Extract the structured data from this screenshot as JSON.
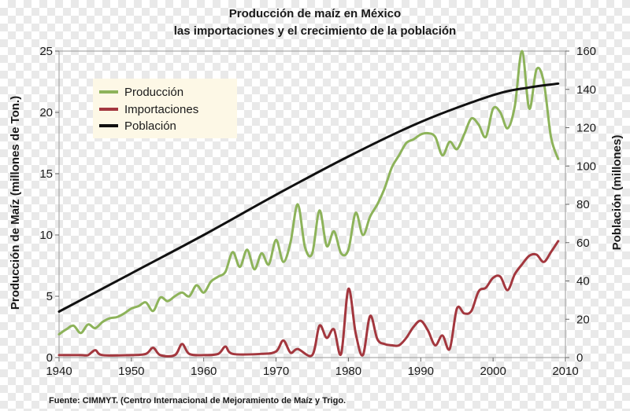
{
  "chart_data": {
    "type": "line",
    "title": "Producción de maíz en México",
    "subtitle": "las importaciones y el crecimiento de la población",
    "ylabel_left": "Producción de Maíz (millones de Ton.)",
    "ylabel_right": "Población (millones)",
    "source": "Fuente: CIMMYT. (Centro Internacional de Mejoramiento de Maíz y Trigo.",
    "xlim": [
      1940,
      2010
    ],
    "ylim_left": [
      0,
      25
    ],
    "ylim_right": [
      0,
      160
    ],
    "x_ticks": [
      "1940",
      "1950",
      "1960",
      "1970",
      "1980",
      "1990",
      "2000",
      "2010"
    ],
    "y_ticks_left": [
      "0",
      "5",
      "10",
      "15",
      "20",
      "25"
    ],
    "y_ticks_right": [
      "0",
      "20",
      "40",
      "60",
      "80",
      "100",
      "120",
      "140",
      "160"
    ],
    "legend": {
      "placement": "top-left",
      "entries": [
        "Producción",
        "Importaciones",
        "Población"
      ]
    },
    "series": [
      {
        "name": "Producción",
        "axis": "left",
        "color": "#8db35a",
        "points": [
          [
            1940,
            1.9
          ],
          [
            1941,
            2.3
          ],
          [
            1942,
            2.6
          ],
          [
            1943,
            2.0
          ],
          [
            1944,
            2.7
          ],
          [
            1945,
            2.4
          ],
          [
            1946,
            2.9
          ],
          [
            1947,
            3.2
          ],
          [
            1948,
            3.3
          ],
          [
            1949,
            3.6
          ],
          [
            1950,
            4.0
          ],
          [
            1951,
            4.2
          ],
          [
            1952,
            4.5
          ],
          [
            1953,
            3.8
          ],
          [
            1954,
            4.9
          ],
          [
            1955,
            4.6
          ],
          [
            1956,
            5.0
          ],
          [
            1957,
            5.3
          ],
          [
            1958,
            5.0
          ],
          [
            1959,
            5.9
          ],
          [
            1960,
            5.3
          ],
          [
            1961,
            6.2
          ],
          [
            1962,
            6.6
          ],
          [
            1963,
            7.0
          ],
          [
            1964,
            8.6
          ],
          [
            1965,
            7.4
          ],
          [
            1966,
            8.8
          ],
          [
            1967,
            7.2
          ],
          [
            1968,
            8.5
          ],
          [
            1969,
            7.6
          ],
          [
            1970,
            9.6
          ],
          [
            1971,
            7.8
          ],
          [
            1972,
            9.4
          ],
          [
            1973,
            12.5
          ],
          [
            1974,
            9.0
          ],
          [
            1975,
            8.5
          ],
          [
            1976,
            12.0
          ],
          [
            1977,
            9.1
          ],
          [
            1978,
            10.3
          ],
          [
            1979,
            8.5
          ],
          [
            1980,
            8.8
          ],
          [
            1981,
            11.8
          ],
          [
            1982,
            10.0
          ],
          [
            1983,
            11.5
          ],
          [
            1984,
            12.5
          ],
          [
            1985,
            13.8
          ],
          [
            1986,
            15.5
          ],
          [
            1987,
            16.5
          ],
          [
            1988,
            17.5
          ],
          [
            1989,
            17.8
          ],
          [
            1990,
            18.2
          ],
          [
            1991,
            18.3
          ],
          [
            1992,
            18.0
          ],
          [
            1993,
            16.5
          ],
          [
            1994,
            17.6
          ],
          [
            1995,
            17.0
          ],
          [
            1996,
            18.2
          ],
          [
            1997,
            19.5
          ],
          [
            1998,
            19.0
          ],
          [
            1999,
            18.0
          ],
          [
            2000,
            20.3
          ],
          [
            2001,
            20.0
          ],
          [
            2002,
            18.7
          ],
          [
            2003,
            20.5
          ],
          [
            2004,
            25.0
          ],
          [
            2005,
            20.3
          ],
          [
            2006,
            23.5
          ],
          [
            2007,
            22.5
          ],
          [
            2008,
            18.0
          ],
          [
            2009,
            16.2
          ]
        ]
      },
      {
        "name": "Importaciones",
        "axis": "left",
        "color": "#a3373e",
        "points": [
          [
            1940,
            0.2
          ],
          [
            1943,
            0.2
          ],
          [
            1944,
            0.2
          ],
          [
            1945,
            0.6
          ],
          [
            1946,
            0.2
          ],
          [
            1950,
            0.2
          ],
          [
            1952,
            0.3
          ],
          [
            1953,
            0.8
          ],
          [
            1954,
            0.2
          ],
          [
            1956,
            0.2
          ],
          [
            1957,
            1.1
          ],
          [
            1958,
            0.3
          ],
          [
            1960,
            0.2
          ],
          [
            1962,
            0.3
          ],
          [
            1963,
            0.9
          ],
          [
            1964,
            0.3
          ],
          [
            1968,
            0.3
          ],
          [
            1970,
            0.5
          ],
          [
            1971,
            1.4
          ],
          [
            1972,
            0.4
          ],
          [
            1973,
            0.7
          ],
          [
            1975,
            0.2
          ],
          [
            1976,
            2.6
          ],
          [
            1977,
            1.6
          ],
          [
            1978,
            2.3
          ],
          [
            1979,
            0.3
          ],
          [
            1980,
            5.6
          ],
          [
            1981,
            2.0
          ],
          [
            1982,
            0.2
          ],
          [
            1983,
            3.4
          ],
          [
            1984,
            1.5
          ],
          [
            1985,
            1.1
          ],
          [
            1986,
            1.0
          ],
          [
            1987,
            1.0
          ],
          [
            1988,
            1.6
          ],
          [
            1989,
            2.5
          ],
          [
            1990,
            3.0
          ],
          [
            1991,
            2.2
          ],
          [
            1992,
            1.0
          ],
          [
            1993,
            1.8
          ],
          [
            1994,
            0.7
          ],
          [
            1995,
            4.0
          ],
          [
            1996,
            3.6
          ],
          [
            1997,
            3.8
          ],
          [
            1998,
            5.4
          ],
          [
            1999,
            5.7
          ],
          [
            2000,
            6.5
          ],
          [
            2001,
            6.6
          ],
          [
            2002,
            5.5
          ],
          [
            2003,
            6.8
          ],
          [
            2004,
            7.6
          ],
          [
            2005,
            8.3
          ],
          [
            2006,
            8.4
          ],
          [
            2007,
            7.8
          ],
          [
            2008,
            8.6
          ],
          [
            2009,
            9.5
          ]
        ]
      },
      {
        "name": "Población",
        "axis": "right",
        "color": "#111111",
        "points": [
          [
            1940,
            24
          ],
          [
            1950,
            44
          ],
          [
            1960,
            64
          ],
          [
            1970,
            85
          ],
          [
            1980,
            105
          ],
          [
            1990,
            123
          ],
          [
            2000,
            137
          ],
          [
            2005,
            141
          ],
          [
            2009,
            143
          ]
        ]
      }
    ]
  }
}
